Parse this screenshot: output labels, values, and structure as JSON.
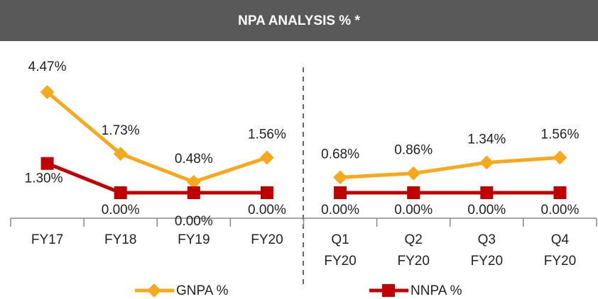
{
  "chart_data": {
    "type": "line",
    "title": "NPA ANALYSIS % *",
    "categories": [
      "FY17",
      "FY18",
      "FY19",
      "FY20",
      "Q1 FY20",
      "Q2 FY20",
      "Q3 FY20",
      "Q4 FY20"
    ],
    "series": [
      {
        "name": "GNPA %",
        "color": "#f7a81b",
        "marker": "diamond",
        "values": [
          4.47,
          1.73,
          0.48,
          1.56,
          0.68,
          0.86,
          1.34,
          1.56
        ],
        "value_labels": [
          "4.47%",
          "1.73%",
          "0.48%",
          "1.56%",
          "0.68%",
          "0.86%",
          "1.34%",
          "1.56%"
        ]
      },
      {
        "name": "NNPA %",
        "color": "#c00000",
        "marker": "square",
        "values": [
          1.3,
          0,
          0,
          0,
          0,
          0,
          0,
          0
        ],
        "value_labels": [
          "1.30%",
          "0.00%",
          "0.00%",
          "0.00%",
          "0.00%",
          "0.00%",
          "0.00%",
          "0.00%"
        ]
      }
    ]
  }
}
